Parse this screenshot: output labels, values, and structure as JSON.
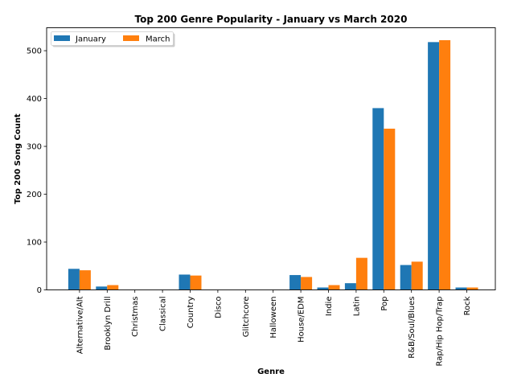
{
  "chart_data": {
    "type": "bar",
    "title": "Top 200 Genre Popularity - January vs March 2020",
    "xlabel": "Genre",
    "ylabel": "Top 200 Song Count",
    "ylim": [
      0,
      548
    ],
    "yticks": [
      0,
      100,
      200,
      300,
      400,
      500
    ],
    "grid": false,
    "legend_position": "top-left",
    "categories": [
      "Alternative/Alt",
      "Brooklyn Drill",
      "Christmas",
      "Classical",
      "Country",
      "Disco",
      "Glitchcore",
      "Halloween",
      "House/EDM",
      "Indie",
      "Latin",
      "Pop",
      "R&B/Soul/Blues",
      "Rap/Hip Hop/Trap",
      "Rock"
    ],
    "series": [
      {
        "name": "January",
        "color": "#1f77b4",
        "values": [
          44,
          7,
          0,
          0,
          32,
          0,
          0,
          0,
          31,
          5,
          14,
          380,
          52,
          518,
          5
        ]
      },
      {
        "name": "March",
        "color": "#ff7f0e",
        "values": [
          41,
          10,
          0,
          0,
          30,
          0,
          0,
          0,
          27,
          10,
          67,
          337,
          59,
          522,
          5
        ]
      }
    ]
  }
}
